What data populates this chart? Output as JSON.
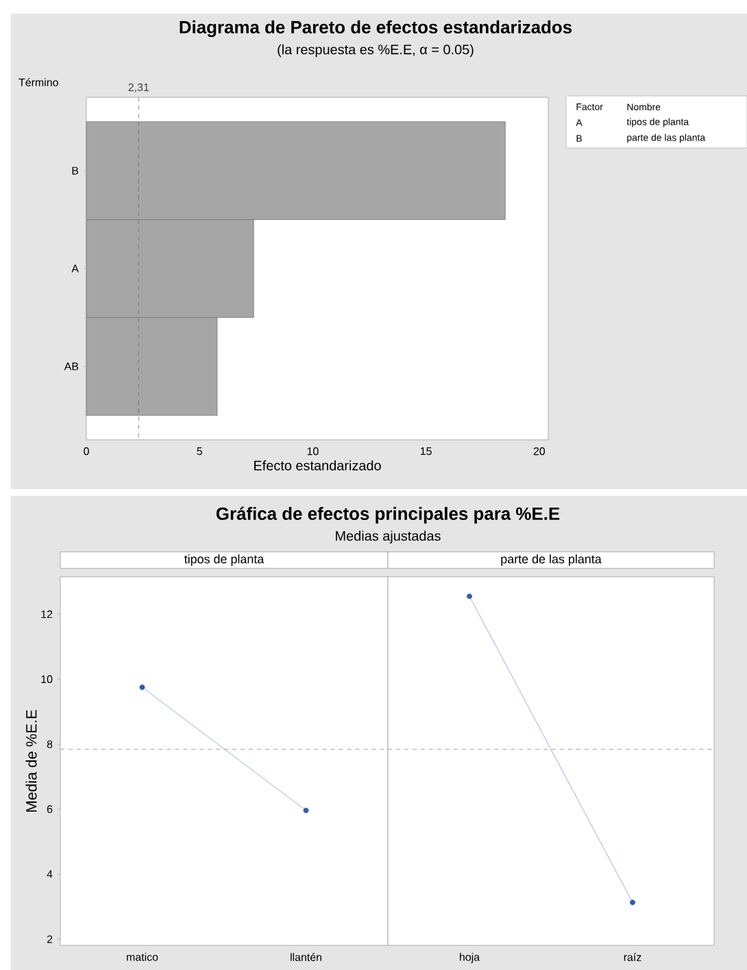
{
  "chart_data": [
    {
      "type": "bar",
      "orientation": "horizontal",
      "title": "Diagrama de Pareto de efectos estandarizados",
      "subtitle": "(la respuesta es %E.E, α = 0.05)",
      "xlabel": "Efecto estandarizado",
      "ylabel": "Término",
      "categories": [
        "B",
        "A",
        "AB"
      ],
      "values": [
        18.5,
        7.39,
        5.78
      ],
      "color": "#a6a6a6",
      "xlim": [
        0,
        20.4
      ],
      "xticks": [
        0,
        5,
        10,
        15,
        20
      ],
      "ref_lines": [
        {
          "axis": "x",
          "value": 2.31,
          "label": "2,31",
          "line_style": "dashed"
        }
      ],
      "annotations": [
        "Factor",
        "Nombre",
        "A",
        "tipos de planta",
        "B",
        "parte de las planta"
      ]
    },
    {
      "type": "line",
      "title": "Gráfica de efectos principales para %E.E",
      "subtitle": "Medias ajustadas",
      "xlabel": "tipos de planta",
      "ylabel": "Media de %E.E",
      "categories": [
        "matico",
        "llantén"
      ],
      "values": [
        9.75,
        5.96
      ],
      "color": "#2f5cad",
      "marker": "circle",
      "ylim": [
        1.81,
        13.15
      ],
      "yticks": [
        2,
        4,
        6,
        8,
        10,
        12
      ],
      "ref_lines": [
        {
          "axis": "y",
          "value": 7.84,
          "line_style": "dashed"
        }
      ]
    },
    {
      "type": "line",
      "xlabel": "parte de las planta",
      "categories": [
        "hoja",
        "raíz"
      ],
      "values": [
        12.55,
        3.13
      ],
      "color": "#2f5cad",
      "marker": "circle",
      "ylim": [
        1.81,
        13.15
      ],
      "yticks": [
        2,
        4,
        6,
        8,
        10,
        12
      ],
      "tick_labels": "x",
      "ref_lines": [
        {
          "axis": "y",
          "value": 7.84,
          "line_style": "dashed"
        }
      ]
    }
  ]
}
